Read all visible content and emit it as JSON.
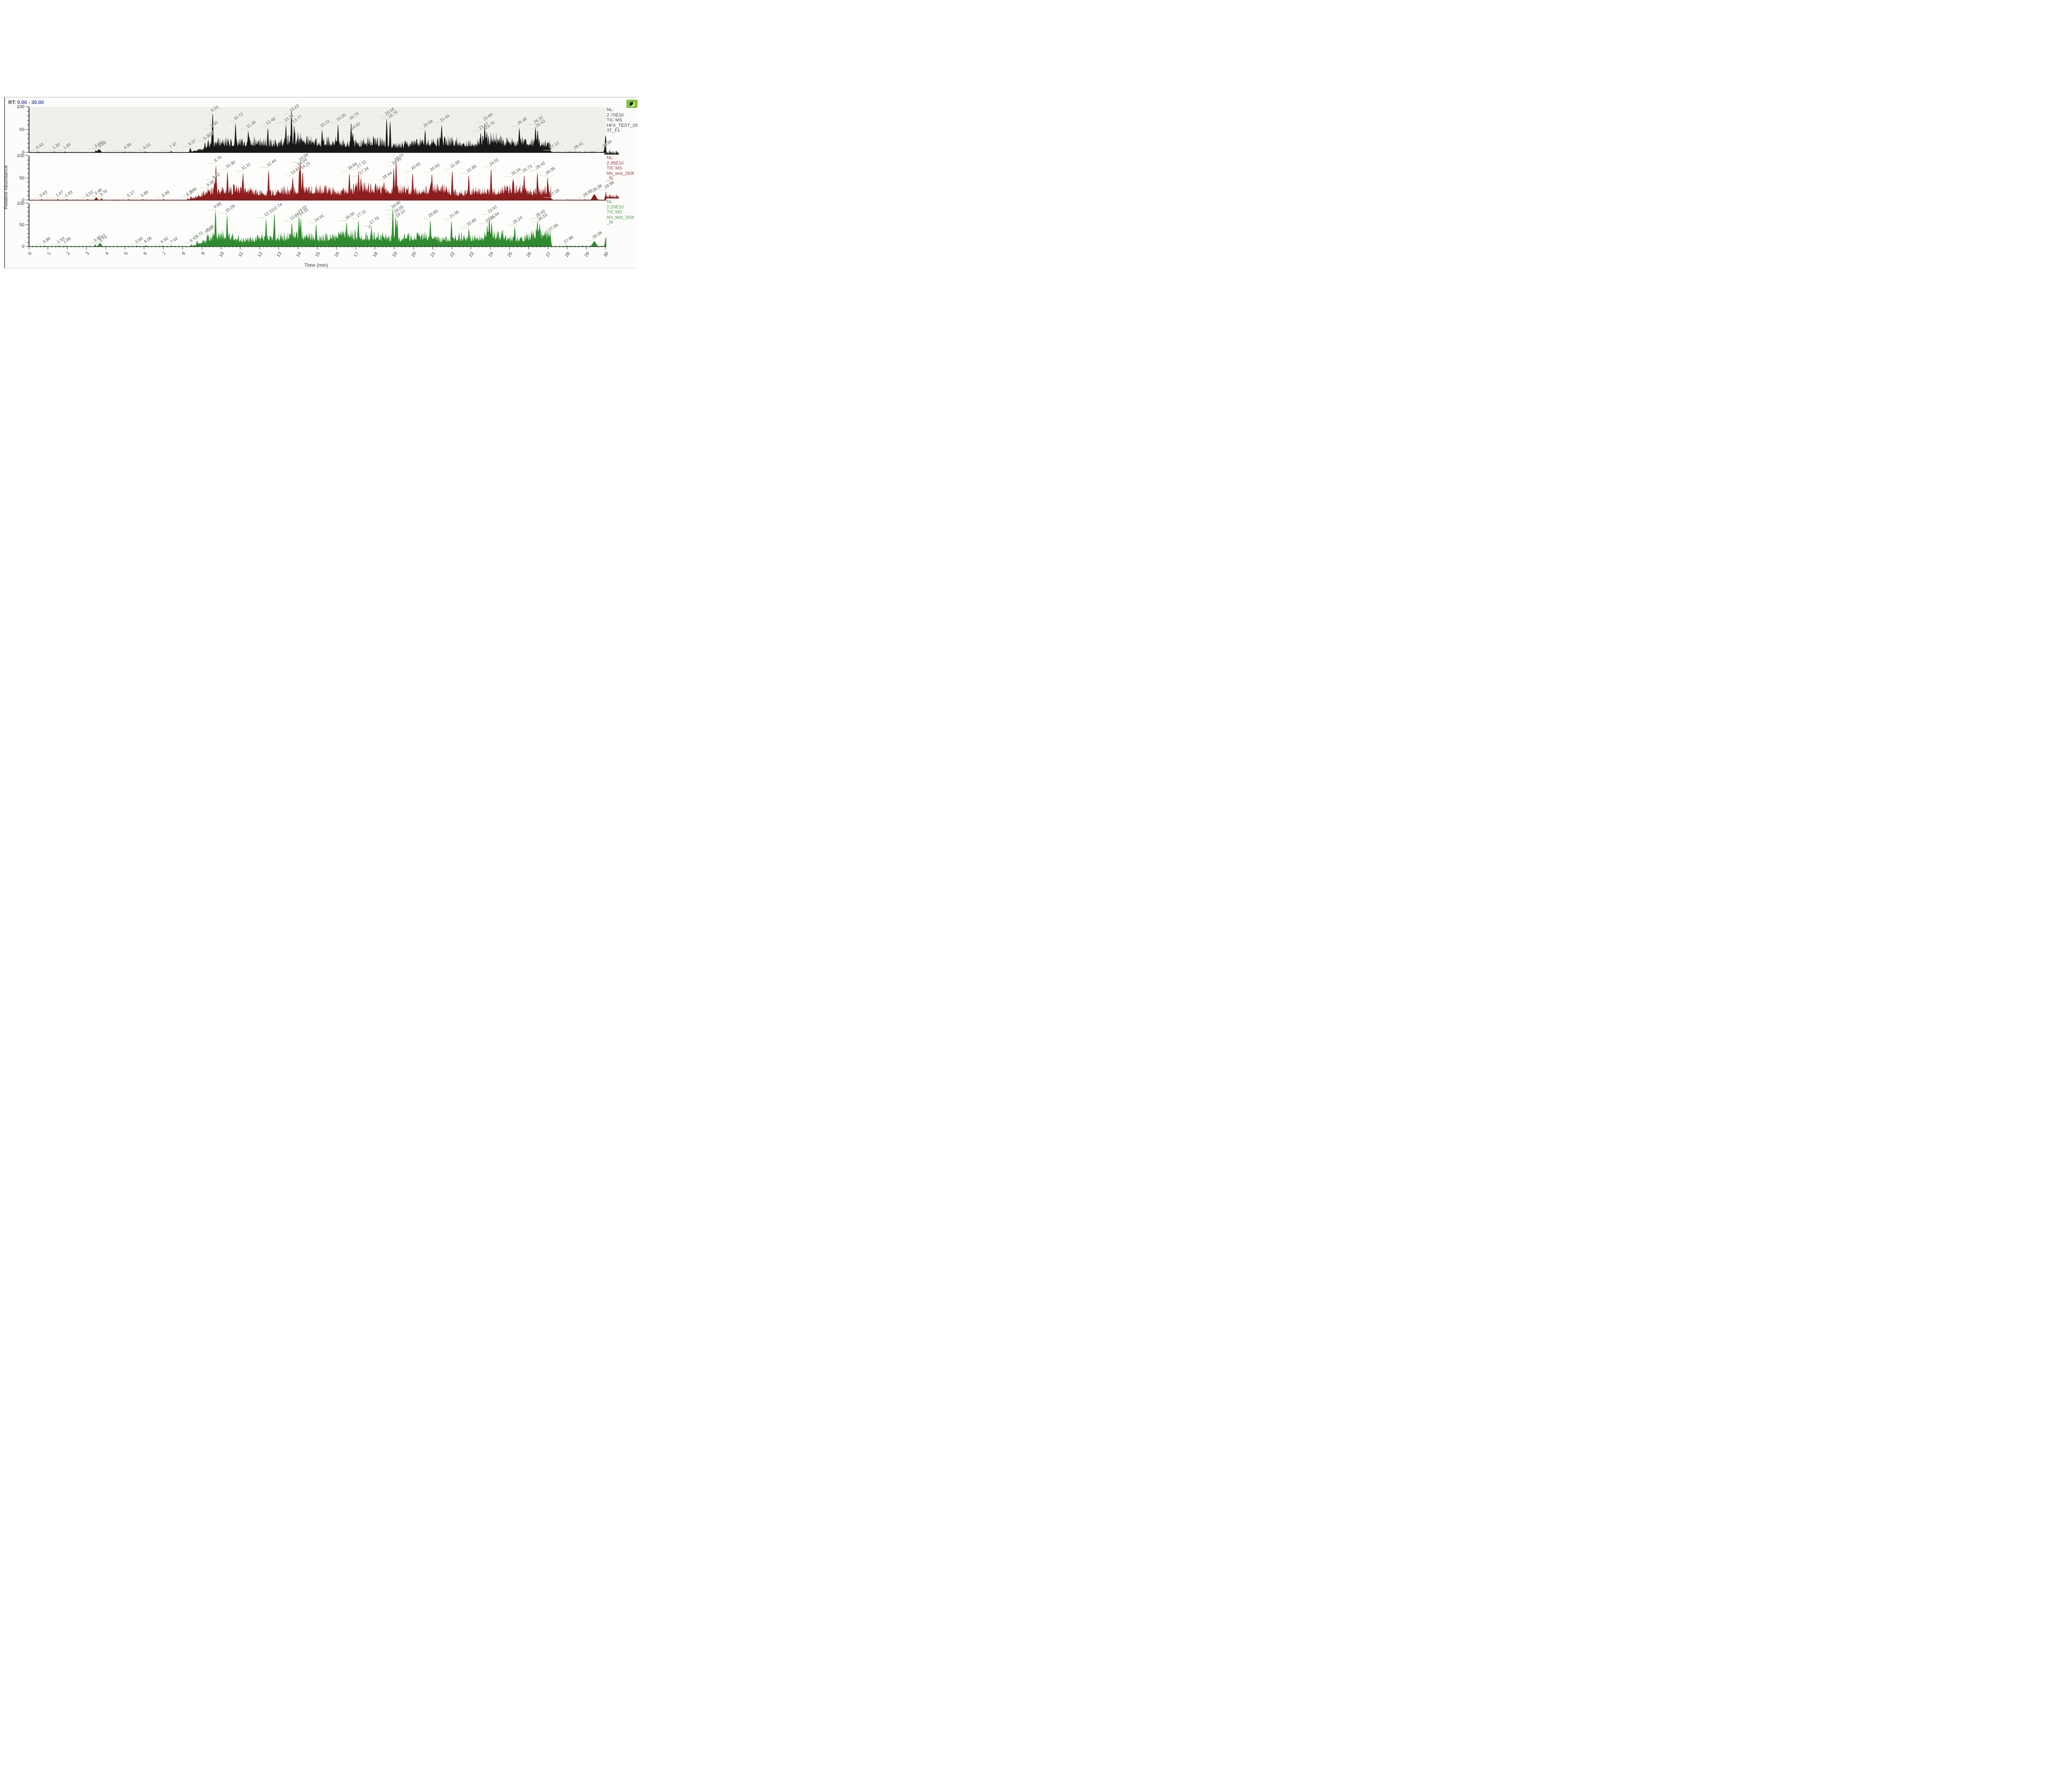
{
  "header": {
    "rt_label": "RT:",
    "rt_range": "0.00 - 30.00"
  },
  "y_axis": {
    "title": "Relative Abundance",
    "range": [
      0,
      100
    ],
    "major_ticks": [
      0,
      50,
      100
    ],
    "minor_step": 10
  },
  "x_axis": {
    "title": "Time (min)",
    "range": [
      0,
      30
    ],
    "major_step": 1,
    "minor_step": 0.2
  },
  "colors": {
    "rt_value": "#4a4ab0",
    "peak_label": "#4d4d4d",
    "leader_line": "#bfe0bf",
    "axis": "#2e2e2e",
    "app_icon_green": "#85cf2c"
  },
  "chart_data": [
    {
      "type": "area",
      "name": "TIC trace 1 (black)",
      "trace_color": "#181818",
      "plot_background": "#efefec",
      "corner_icon_color": null,
      "annotation": {
        "color": "#3f3f3f",
        "lines": [
          "NL:",
          "2.70E10",
          "TIC MS",
          "HFX_TEST_29",
          "3T_F1"
        ]
      },
      "xlim": [
        0,
        30
      ],
      "ylim": [
        0,
        100
      ],
      "signal": {
        "seed": 7,
        "rise_start": 8.4,
        "rise_len": 1.1,
        "drop": 27.1,
        "env_base": 34,
        "env_var": 13,
        "tail": 1.6,
        "end_spike": {
          "t": 29.97,
          "h": 38,
          "w": 0.04
        },
        "peaks": [
          {
            "t": 0.43,
            "h": 2,
            "label": "0.43"
          },
          {
            "t": 1.3,
            "h": 2,
            "label": "1.30"
          },
          {
            "t": 1.85,
            "h": 2,
            "label": "1.85"
          },
          {
            "t": 3.46,
            "h": 5,
            "label": "3.46"
          },
          {
            "t": 3.61,
            "h": 7,
            "w": 0.06,
            "label": "3.61"
          },
          {
            "t": 3.69,
            "h": 5,
            "label": "3.69"
          },
          {
            "t": 4.99,
            "h": 2,
            "label": "4.99"
          },
          {
            "t": 6.01,
            "h": 2,
            "label": "6.01"
          },
          {
            "t": 7.37,
            "h": 3,
            "label": "7.37"
          },
          {
            "t": 8.37,
            "h": 10,
            "label": "8.37"
          },
          {
            "t": 9.13,
            "h": 22,
            "label": "9.13"
          },
          {
            "t": 9.3,
            "h": 28,
            "label": "9.30"
          },
          {
            "t": 9.5,
            "h": 50,
            "label": "9.50"
          },
          {
            "t": 9.53,
            "h": 88,
            "label": "9.53"
          },
          {
            "t": 10.72,
            "h": 65,
            "label": "10.72"
          },
          {
            "t": 11.38,
            "h": 48,
            "label": "11.38"
          },
          {
            "t": 12.4,
            "h": 55,
            "label": "12.40"
          },
          {
            "t": 13.34,
            "h": 62,
            "label": "13.34"
          },
          {
            "t": 13.63,
            "h": 97,
            "label": "13.63"
          },
          {
            "t": 13.77,
            "h": 60,
            "label": "13.77"
          },
          {
            "t": 15.22,
            "h": 50,
            "label": "15.22"
          },
          {
            "t": 16.05,
            "h": 63,
            "label": "16.05"
          },
          {
            "t": 16.73,
            "h": 66,
            "label": "16.73"
          },
          {
            "t": 16.82,
            "h": 44,
            "label": "16.82"
          },
          {
            "t": 18.58,
            "h": 76,
            "label": "18.58"
          },
          {
            "t": 18.76,
            "h": 70,
            "label": "18.76"
          },
          {
            "t": 20.58,
            "h": 50,
            "label": "20.58"
          },
          {
            "t": 21.44,
            "h": 62,
            "label": "21.44"
          },
          {
            "t": 23.47,
            "h": 44,
            "label": "23.47"
          },
          {
            "t": 23.68,
            "h": 64,
            "label": "23.68"
          },
          {
            "t": 23.79,
            "h": 46,
            "label": "23.79"
          },
          {
            "t": 25.48,
            "h": 55,
            "label": "25.48"
          },
          {
            "t": 26.32,
            "h": 58,
            "label": "26.32"
          },
          {
            "t": 26.43,
            "h": 50,
            "label": "26.43"
          },
          {
            "t": 27.13,
            "h": 2,
            "label": "27.13"
          },
          {
            "t": 28.41,
            "h": 2,
            "label": "28.41"
          },
          {
            "t": 29.9,
            "h": 5,
            "label": "29.90"
          }
        ]
      }
    },
    {
      "type": "area",
      "name": "TIC trace 2 (dark red)",
      "trace_color": "#8e1d1d",
      "plot_background": "#fdfdfb",
      "corner_icon_color": "#1b1b1b",
      "annotation": {
        "color": "#9a3a3a",
        "lines": [
          "NL:",
          "2.35E10",
          "TIC MS",
          "hfx_test_293t",
          "_f5"
        ]
      },
      "xlim": [
        0,
        30
      ],
      "ylim": [
        0,
        100
      ],
      "signal": {
        "seed": 13,
        "rise_start": 8.3,
        "rise_len": 1.3,
        "drop": 27.12,
        "env_base": 34,
        "env_var": 13,
        "tail": 1.2,
        "end_spike": null,
        "peaks": [
          {
            "t": 0.63,
            "h": 2,
            "label": "0.63"
          },
          {
            "t": 1.47,
            "h": 2,
            "label": "1.47"
          },
          {
            "t": 1.93,
            "h": 2,
            "label": "1.93"
          },
          {
            "t": 3.02,
            "h": 2,
            "label": "3.02"
          },
          {
            "t": 3.48,
            "h": 6,
            "w": 0.06,
            "label": "3.48"
          },
          {
            "t": 3.75,
            "h": 4,
            "label": "3.75"
          },
          {
            "t": 5.17,
            "h": 2,
            "label": "5.17"
          },
          {
            "t": 5.89,
            "h": 2,
            "label": "5.89"
          },
          {
            "t": 6.99,
            "h": 2,
            "label": "6.99"
          },
          {
            "t": 8.25,
            "h": 4,
            "label": "8.25"
          },
          {
            "t": 8.4,
            "h": 9,
            "label": "8.40"
          },
          {
            "t": 9.3,
            "h": 25,
            "label": "9.30"
          },
          {
            "t": 9.62,
            "h": 42,
            "label": "9.62"
          },
          {
            "t": 9.7,
            "h": 80,
            "label": "9.70"
          },
          {
            "t": 10.3,
            "h": 66,
            "label": "10.30"
          },
          {
            "t": 11.11,
            "h": 62,
            "label": "11.11"
          },
          {
            "t": 12.44,
            "h": 70,
            "label": "12.44"
          },
          {
            "t": 13.69,
            "h": 52,
            "label": "13.69"
          },
          {
            "t": 14.04,
            "h": 72,
            "label": "14.04"
          },
          {
            "t": 14.09,
            "h": 95,
            "label": "14.09"
          },
          {
            "t": 14.21,
            "h": 64,
            "label": "14.21"
          },
          {
            "t": 16.64,
            "h": 62,
            "label": "16.64"
          },
          {
            "t": 17.12,
            "h": 67,
            "label": "17.12"
          },
          {
            "t": 17.24,
            "h": 52,
            "label": "17.24"
          },
          {
            "t": 18.44,
            "h": 42,
            "label": "18.44"
          },
          {
            "t": 18.95,
            "h": 74,
            "label": "18.95"
          },
          {
            "t": 19.07,
            "h": 92,
            "label": "19.07"
          },
          {
            "t": 19.93,
            "h": 62,
            "label": "19.93"
          },
          {
            "t": 20.93,
            "h": 60,
            "label": "20.93"
          },
          {
            "t": 21.99,
            "h": 67,
            "label": "21.99"
          },
          {
            "t": 22.85,
            "h": 57,
            "label": "22.85"
          },
          {
            "t": 24.01,
            "h": 72,
            "label": "24.01"
          },
          {
            "t": 25.16,
            "h": 50,
            "label": "25.16"
          },
          {
            "t": 25.73,
            "h": 57,
            "label": "25.73"
          },
          {
            "t": 26.42,
            "h": 64,
            "label": "26.42"
          },
          {
            "t": 26.95,
            "h": 52,
            "label": "26.95"
          },
          {
            "t": 27.16,
            "h": 3,
            "label": "27.16"
          },
          {
            "t": 28.88,
            "h": 2,
            "label": "28.88"
          },
          {
            "t": 29.38,
            "h": 13,
            "w": 0.09,
            "label": "29.38"
          },
          {
            "t": 29.99,
            "h": 20,
            "label": "29.99"
          }
        ]
      }
    },
    {
      "type": "area",
      "name": "TIC trace 3 (green)",
      "trace_color": "#2e8b2e",
      "plot_background": "#fdfdfb",
      "corner_icon_color": "#8e1d1d",
      "annotation": {
        "color": "#46a046",
        "lines": [
          "NL:",
          "2.20E10",
          "TIC MS",
          "hfx_test_293t",
          "_f9"
        ]
      },
      "xlim": [
        0,
        30
      ],
      "ylim": [
        0,
        100
      ],
      "signal": {
        "seed": 21,
        "rise_start": 8.45,
        "rise_len": 1.0,
        "drop": 27.12,
        "env_base": 34,
        "env_var": 13,
        "tail": 1.2,
        "end_spike": {
          "t": 29.99,
          "h": 22,
          "w": 0.05
        },
        "peaks": [
          {
            "t": 0.8,
            "h": 2,
            "label": "0.80"
          },
          {
            "t": 1.53,
            "h": 2,
            "label": "1.53"
          },
          {
            "t": 1.86,
            "h": 2,
            "label": "1.86"
          },
          {
            "t": 3.43,
            "h": 5,
            "label": "3.43"
          },
          {
            "t": 3.67,
            "h": 9,
            "w": 0.06,
            "label": "3.67"
          },
          {
            "t": 3.73,
            "h": 5,
            "label": "3.73"
          },
          {
            "t": 5.6,
            "h": 2,
            "label": "5.60"
          },
          {
            "t": 6.06,
            "h": 3,
            "label": "6.06"
          },
          {
            "t": 6.92,
            "h": 2,
            "label": "6.92"
          },
          {
            "t": 7.42,
            "h": 2,
            "label": "7.42"
          },
          {
            "t": 8.43,
            "h": 5,
            "label": "8.43"
          },
          {
            "t": 8.72,
            "h": 14,
            "label": "8.72"
          },
          {
            "t": 9.25,
            "h": 26,
            "label": "9.25"
          },
          {
            "t": 9.28,
            "h": 30,
            "label": "9.28"
          },
          {
            "t": 9.68,
            "h": 86,
            "label": "9.68"
          },
          {
            "t": 10.28,
            "h": 74,
            "label": "10.28"
          },
          {
            "t": 12.31,
            "h": 64,
            "label": "12.31"
          },
          {
            "t": 12.74,
            "h": 78,
            "label": "12.74"
          },
          {
            "t": 13.65,
            "h": 56,
            "label": "13.65"
          },
          {
            "t": 14.02,
            "h": 72,
            "label": "14.02"
          },
          {
            "t": 14.11,
            "h": 66,
            "label": "14.11"
          },
          {
            "t": 14.91,
            "h": 52,
            "label": "14.91"
          },
          {
            "t": 16.5,
            "h": 57,
            "label": "16.50"
          },
          {
            "t": 17.11,
            "h": 62,
            "label": "17.11"
          },
          {
            "t": 17.79,
            "h": 46,
            "label": "17.79"
          },
          {
            "t": 18.9,
            "h": 90,
            "label": "18.90"
          },
          {
            "t": 19.05,
            "h": 72,
            "label": "19.05"
          },
          {
            "t": 19.13,
            "h": 62,
            "label": "19.13"
          },
          {
            "t": 20.85,
            "h": 62,
            "label": "20.85"
          },
          {
            "t": 21.95,
            "h": 60,
            "label": "21.95"
          },
          {
            "t": 22.85,
            "h": 42,
            "label": "22.85"
          },
          {
            "t": 23.81,
            "h": 50,
            "label": "23.81"
          },
          {
            "t": 23.92,
            "h": 72,
            "label": "23.92"
          },
          {
            "t": 24.04,
            "h": 57,
            "label": "24.04"
          },
          {
            "t": 25.24,
            "h": 47,
            "label": "25.24"
          },
          {
            "t": 26.42,
            "h": 62,
            "label": "26.42"
          },
          {
            "t": 26.53,
            "h": 54,
            "label": "26.53"
          },
          {
            "t": 27.09,
            "h": 30,
            "label": "27.09"
          },
          {
            "t": 27.88,
            "h": 2,
            "label": "27.88"
          },
          {
            "t": 29.38,
            "h": 12,
            "w": 0.09,
            "label": "29.38"
          }
        ]
      }
    }
  ]
}
